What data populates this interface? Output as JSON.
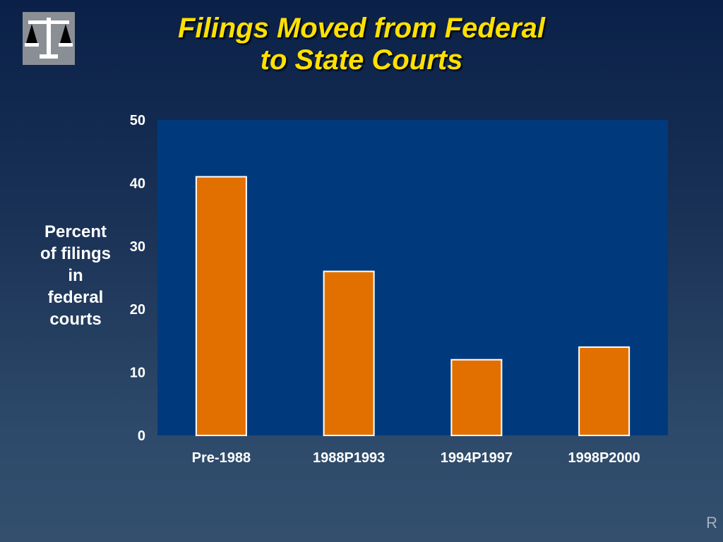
{
  "slide": {
    "title_lines": [
      "Filings Moved from Federal",
      "to State Courts"
    ],
    "logo_icon": "scales-of-justice-icon",
    "corner_mark": "R"
  },
  "colors": {
    "title": "#ffe100",
    "plot_background": "#003a7c",
    "bar_fill": "#e27000",
    "bar_stroke": "#ffffff",
    "text": "#ffffff"
  },
  "chart_data": {
    "type": "bar",
    "title": "Filings Moved from Federal to State Courts",
    "categories": [
      "Pre-1988",
      "1988P1993",
      "1994P1997",
      "1998P2000"
    ],
    "values": [
      41,
      26,
      12,
      14
    ],
    "ylabel_lines": [
      "Percent",
      "of filings",
      "in",
      "federal",
      "courts"
    ],
    "xlabel": "",
    "ylim": [
      0,
      50
    ],
    "yticks": [
      0,
      10,
      20,
      30,
      40,
      50
    ],
    "grid": false,
    "legend": "none"
  }
}
